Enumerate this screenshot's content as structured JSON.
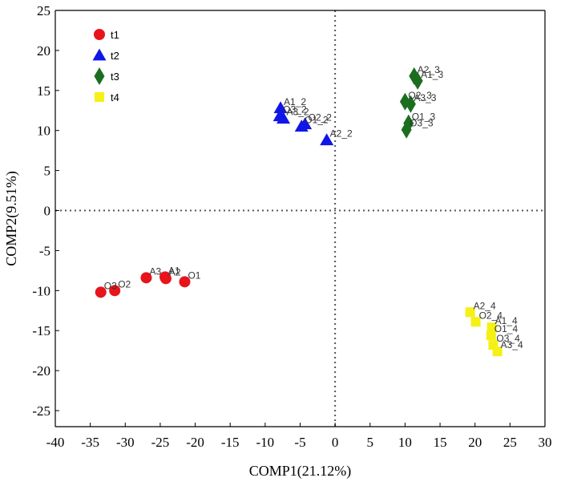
{
  "chart_data": {
    "type": "scatter",
    "title": "",
    "xlabel": "COMP1(21.12%)",
    "ylabel": "COMP2(9.51%)",
    "xlim": [
      -40,
      30
    ],
    "ylim": [
      -27,
      25
    ],
    "xticks": [
      -40,
      -35,
      -30,
      -25,
      -20,
      -15,
      -10,
      -5,
      0,
      5,
      10,
      15,
      20,
      25,
      30
    ],
    "yticks": [
      -25,
      -20,
      -15,
      -10,
      -5,
      0,
      5,
      10,
      15,
      20,
      25
    ],
    "reference_lines": {
      "x": 0,
      "y": 0,
      "style": "dotted"
    },
    "legend_position": "top-left",
    "series": [
      {
        "name": "t1",
        "marker": "circle",
        "color": "#e8141b",
        "points": [
          {
            "x": -33.5,
            "y": -10.2,
            "label": "O3"
          },
          {
            "x": -31.5,
            "y": -10.0,
            "label": "O2"
          },
          {
            "x": -27.0,
            "y": -8.4,
            "label": "A3"
          },
          {
            "x": -24.3,
            "y": -8.3,
            "label": "A1"
          },
          {
            "x": -24.2,
            "y": -8.5,
            "label": "A2"
          },
          {
            "x": -21.5,
            "y": -8.9,
            "label": "O1"
          }
        ]
      },
      {
        "name": "t2",
        "marker": "triangle",
        "color": "#1016e6",
        "points": [
          {
            "x": -7.8,
            "y": 12.8,
            "label": "A1_2"
          },
          {
            "x": -7.9,
            "y": 11.8,
            "label": "O3_2"
          },
          {
            "x": -7.4,
            "y": 11.5,
            "label": "A3_2"
          },
          {
            "x": -4.8,
            "y": 10.5,
            "label": "O1_2"
          },
          {
            "x": -4.3,
            "y": 10.8,
            "label": "O2_2"
          },
          {
            "x": -1.2,
            "y": 8.8,
            "label": "A2_2"
          }
        ]
      },
      {
        "name": "t3",
        "marker": "diamond",
        "color": "#1b6e1f",
        "points": [
          {
            "x": 11.3,
            "y": 16.8,
            "label": "A2_3"
          },
          {
            "x": 11.8,
            "y": 16.2,
            "label": "A1_3"
          },
          {
            "x": 10.0,
            "y": 13.6,
            "label": "O2_3"
          },
          {
            "x": 10.8,
            "y": 13.3,
            "label": "A3_3"
          },
          {
            "x": 10.5,
            "y": 10.9,
            "label": "O1_3"
          },
          {
            "x": 10.2,
            "y": 10.1,
            "label": "O3_3"
          }
        ]
      },
      {
        "name": "t4",
        "marker": "square",
        "color": "#f5f015",
        "points": [
          {
            "x": 19.3,
            "y": -12.7,
            "label": "A2_4"
          },
          {
            "x": 20.1,
            "y": -13.9,
            "label": "O2_4"
          },
          {
            "x": 22.4,
            "y": -14.6,
            "label": "A1_4"
          },
          {
            "x": 22.3,
            "y": -15.6,
            "label": "O1_4"
          },
          {
            "x": 22.6,
            "y": -16.8,
            "label": "O3_4"
          },
          {
            "x": 23.2,
            "y": -17.6,
            "label": "A3_4"
          }
        ]
      }
    ]
  }
}
